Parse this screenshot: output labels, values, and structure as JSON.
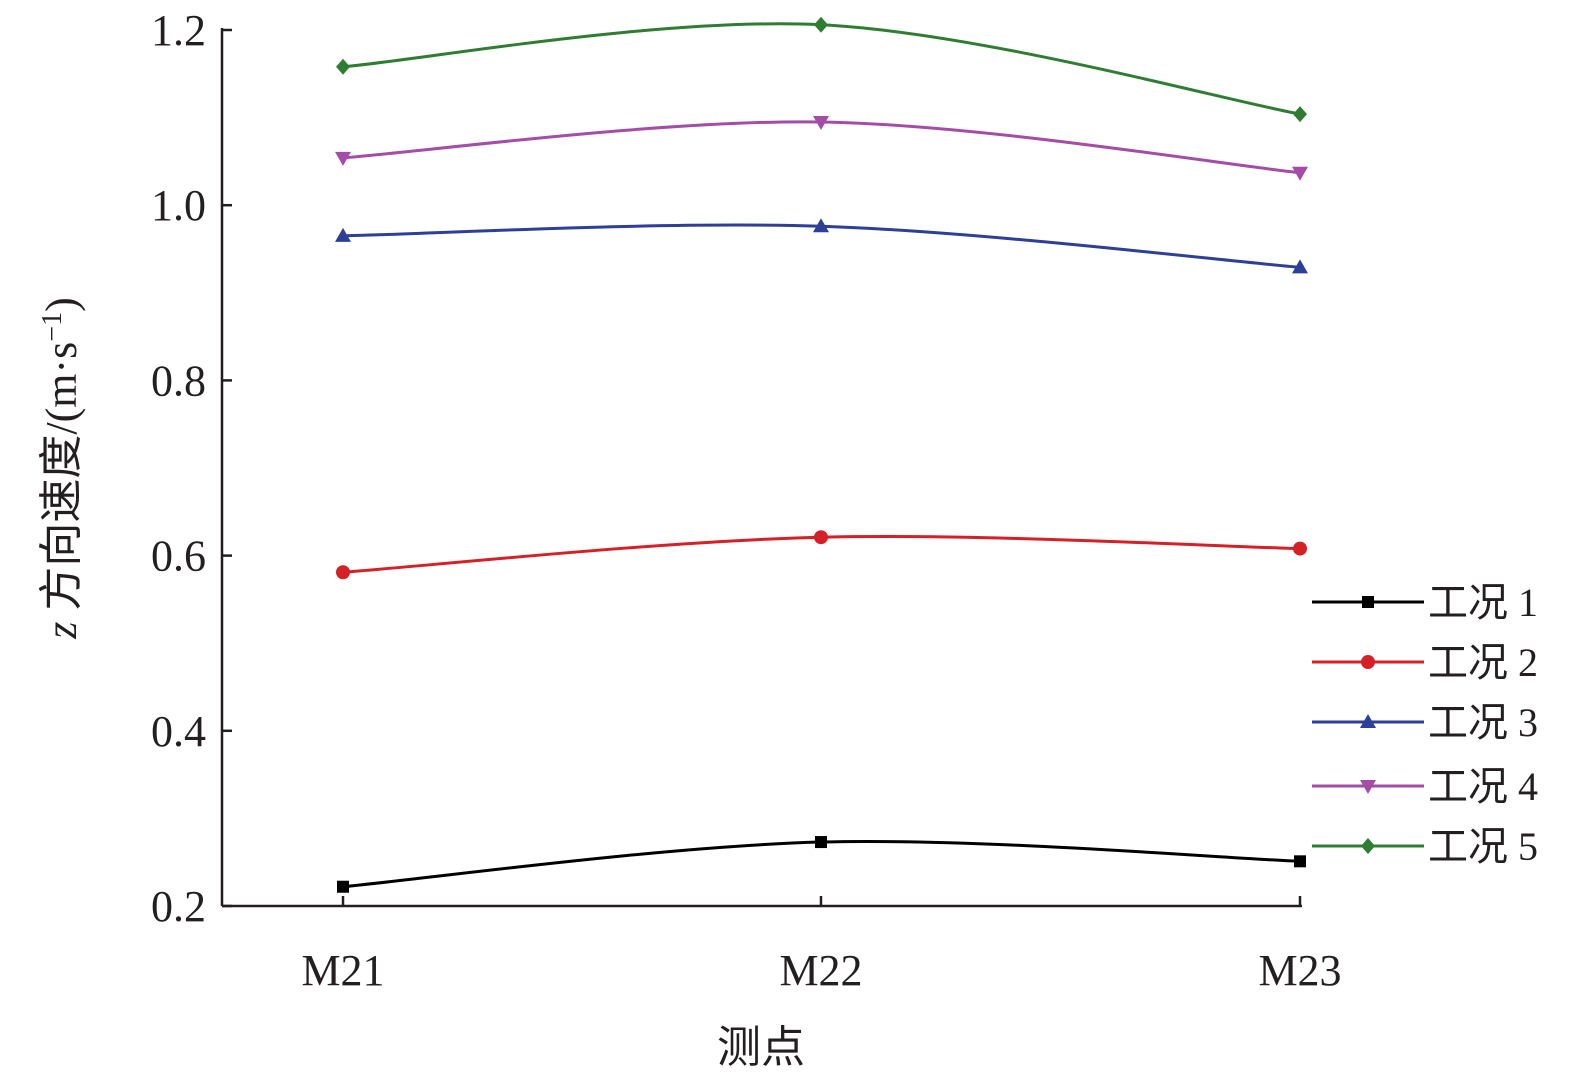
{
  "chart_data": {
    "type": "line",
    "title": "",
    "xlabel": "测点",
    "ylabel_prefix": "z",
    "ylabel_main": " 方向速度/(m·s",
    "ylabel_sup": "−1",
    "ylabel_suffix": ")",
    "categories": [
      "M21",
      "M22",
      "M23"
    ],
    "ylim": [
      0.2,
      1.2
    ],
    "yticks": [
      0.2,
      0.4,
      0.6,
      0.8,
      1.0,
      1.2
    ],
    "ytick_labels": [
      "0.2",
      "0.4",
      "0.6",
      "0.8",
      "1.0",
      "1.2"
    ],
    "grid": false,
    "legend_position": "right",
    "smooth": true,
    "series": [
      {
        "name": "工况 1",
        "values": [
          0.222,
          0.273,
          0.251
        ],
        "color": "#000000",
        "marker": "square"
      },
      {
        "name": "工况 2",
        "values": [
          0.581,
          0.621,
          0.608
        ],
        "color": "#d62027",
        "marker": "circle"
      },
      {
        "name": "工况 3",
        "values": [
          0.965,
          0.976,
          0.929
        ],
        "color": "#2e3f97",
        "marker": "triangle-up"
      },
      {
        "name": "工况 4",
        "values": [
          1.054,
          1.095,
          1.037
        ],
        "color": "#a54ca8",
        "marker": "triangle-down"
      },
      {
        "name": "工况 5",
        "values": [
          1.158,
          1.206,
          1.104
        ],
        "color": "#2e7d32",
        "marker": "diamond"
      }
    ]
  }
}
